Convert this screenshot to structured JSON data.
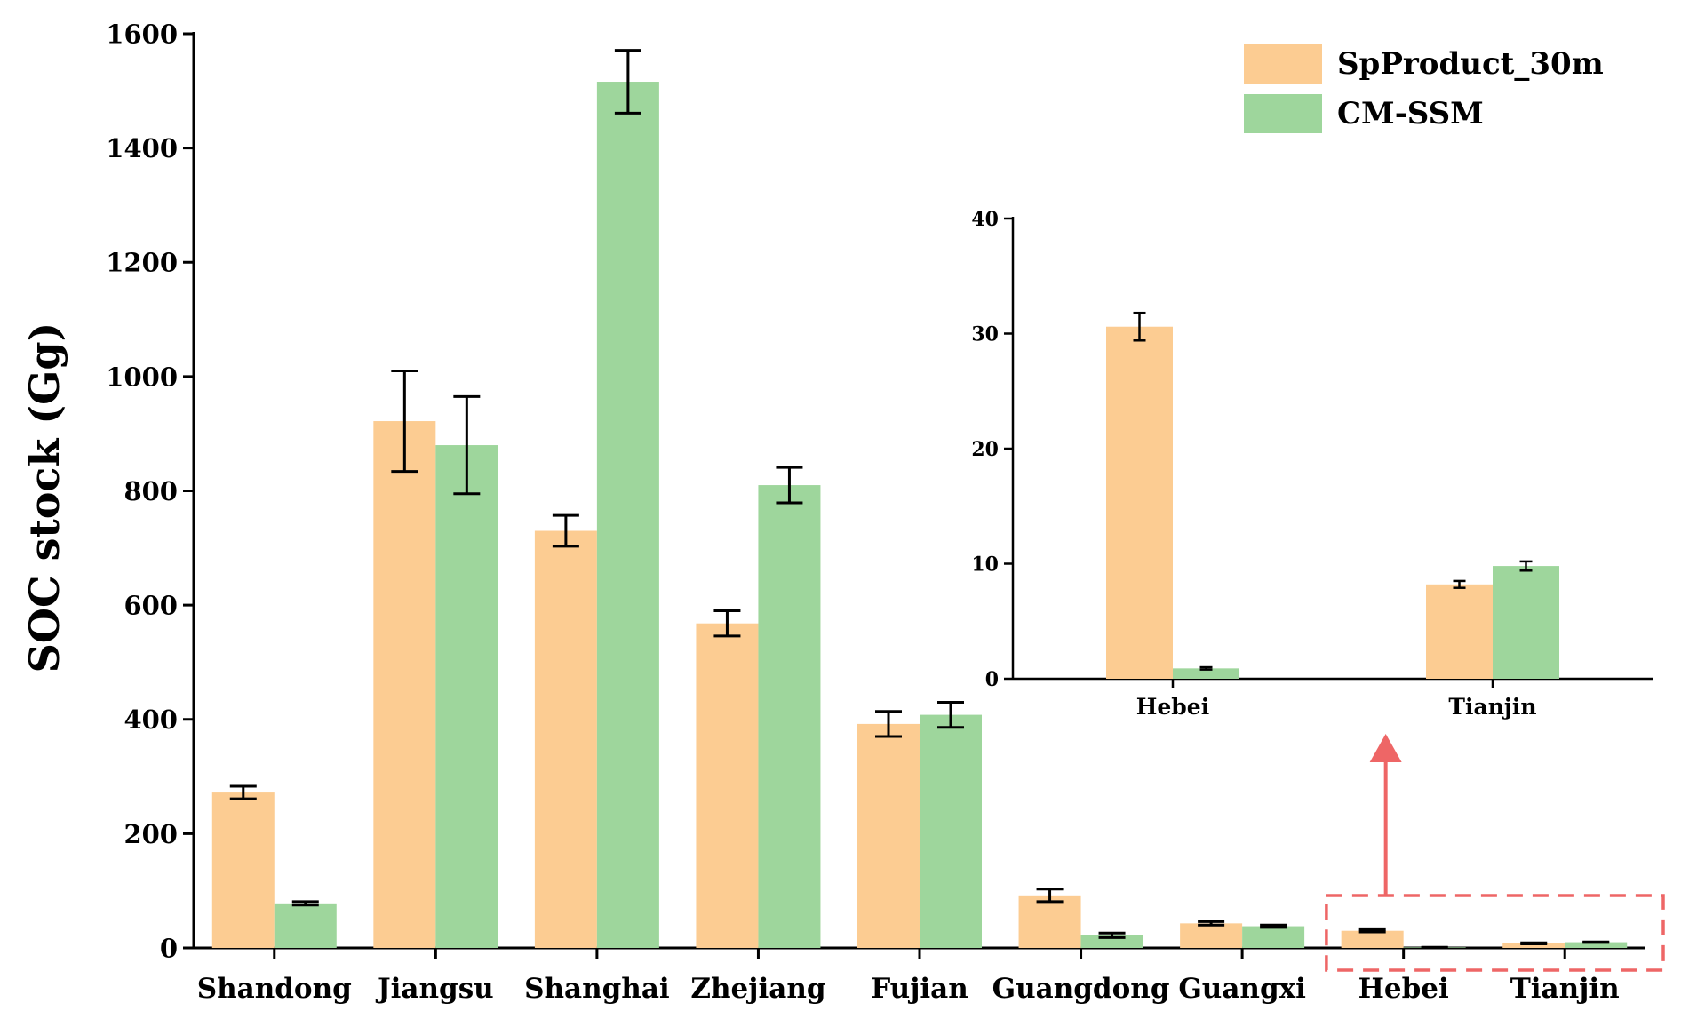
{
  "chart_data": [
    {
      "type": "bar",
      "ylabel": "SOC stock (Gg)",
      "ylim": [
        0,
        1600
      ],
      "yticks": [
        0,
        200,
        400,
        600,
        800,
        1000,
        1200,
        1400,
        1600
      ],
      "categories": [
        "Shandong",
        "Jiangsu",
        "Shanghai",
        "Zhejiang",
        "Fujian",
        "Guangdong",
        "Guangxi",
        "Hebei",
        "Tianjin"
      ],
      "series": [
        {
          "name": "SpProduct_30m",
          "color": "#FCCC92",
          "values": [
            272,
            922,
            730,
            568,
            392,
            92,
            43,
            30,
            8
          ],
          "errors": [
            11,
            88,
            27,
            22,
            22,
            11,
            3,
            2,
            1
          ]
        },
        {
          "name": "CM-SSM",
          "color": "#9ED69C",
          "values": [
            78,
            880,
            1516,
            810,
            408,
            22,
            38,
            1,
            10
          ],
          "errors": [
            3,
            85,
            55,
            31,
            22,
            4,
            2,
            0.2,
            0.5
          ]
        }
      ],
      "legend_position": "top-right",
      "highlight_box": "Hebei–Tianjin",
      "annotation_color": "#EE6666"
    },
    {
      "type": "bar",
      "role": "inset",
      "ylim": [
        0,
        40
      ],
      "yticks": [
        0,
        10,
        20,
        30,
        40
      ],
      "categories": [
        "Hebei",
        "Tianjin"
      ],
      "series": [
        {
          "name": "SpProduct_30m",
          "color": "#FCCC92",
          "values": [
            30.6,
            8.2
          ],
          "errors": [
            1.2,
            0.3
          ]
        },
        {
          "name": "CM-SSM",
          "color": "#9ED69C",
          "values": [
            0.9,
            9.8
          ],
          "errors": [
            0.1,
            0.4
          ]
        }
      ]
    }
  ]
}
